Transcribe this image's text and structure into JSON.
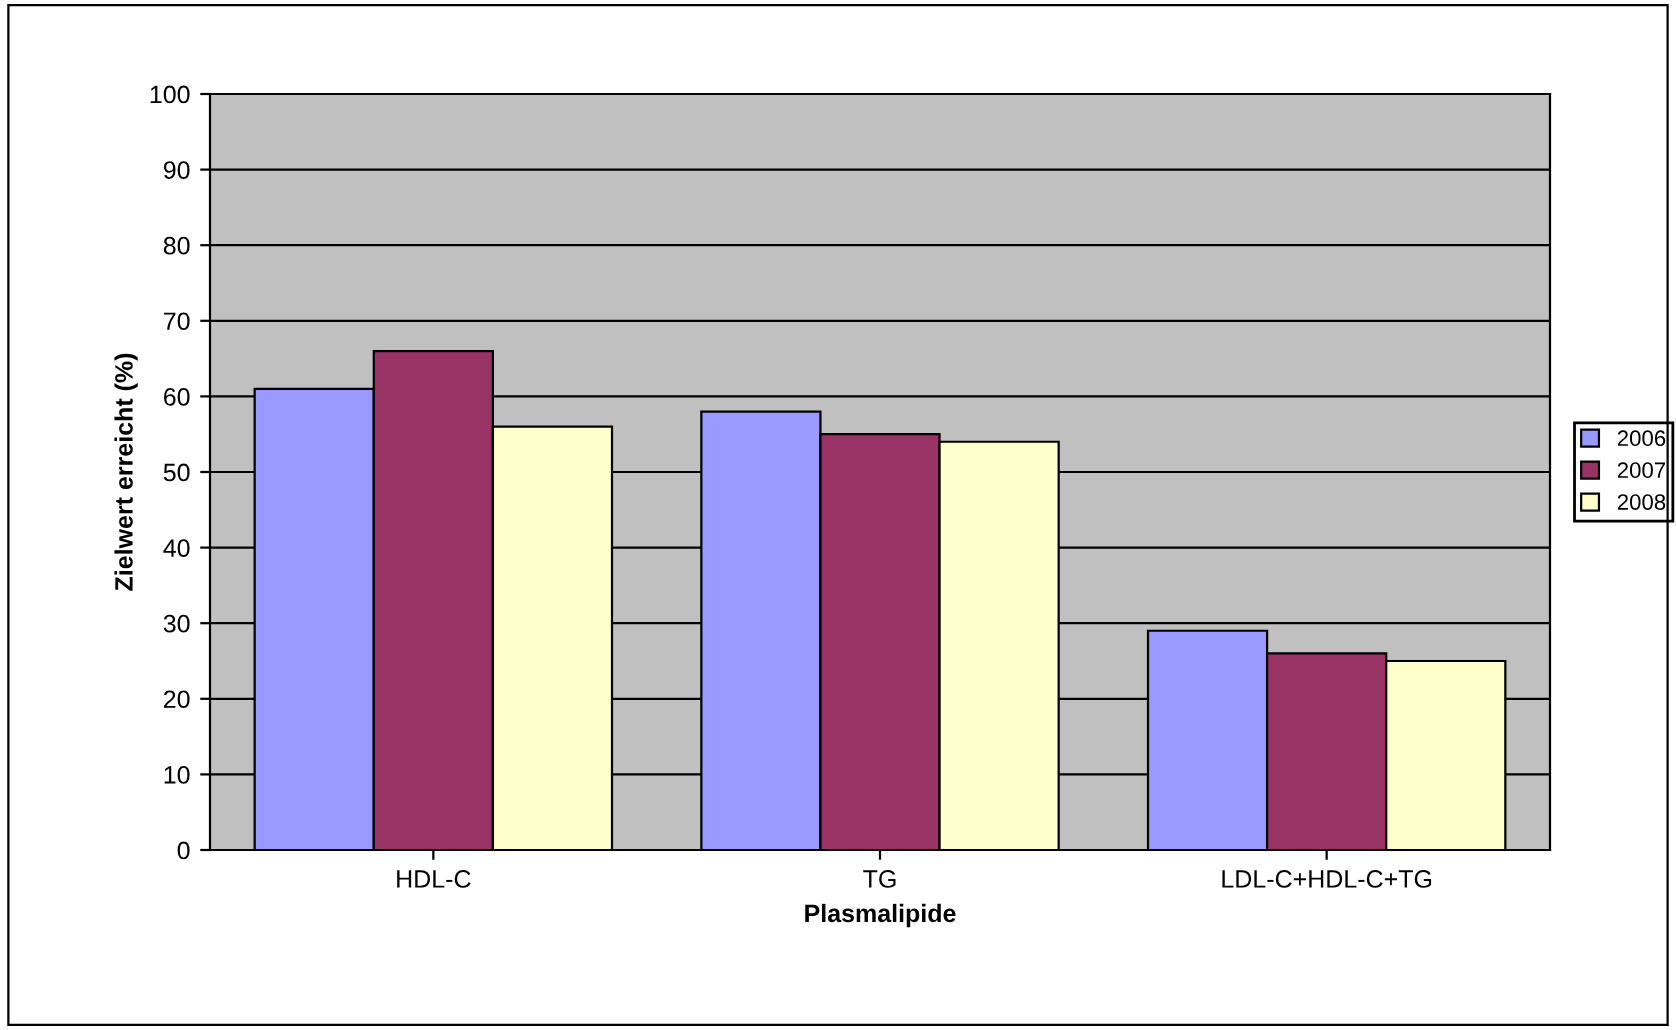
{
  "chart_data": {
    "type": "bar",
    "xlabel": "Plasmalipide",
    "ylabel": "Zielwert erreicht (%)",
    "categories": [
      "HDL-C",
      "TG",
      "LDL-C+HDL-C+TG"
    ],
    "series": [
      {
        "name": "2006",
        "color": "#9999ff",
        "values": [
          61,
          58,
          29
        ]
      },
      {
        "name": "2007",
        "color": "#993366",
        "values": [
          66,
          55,
          26
        ]
      },
      {
        "name": "2008",
        "color": "#ffffcc",
        "values": [
          56,
          54,
          25
        ]
      }
    ],
    "ylim": [
      0,
      100
    ],
    "yticks": [
      0,
      10,
      20,
      30,
      40,
      50,
      60,
      70,
      80,
      90,
      100
    ],
    "grid": "y",
    "legend": "right"
  }
}
